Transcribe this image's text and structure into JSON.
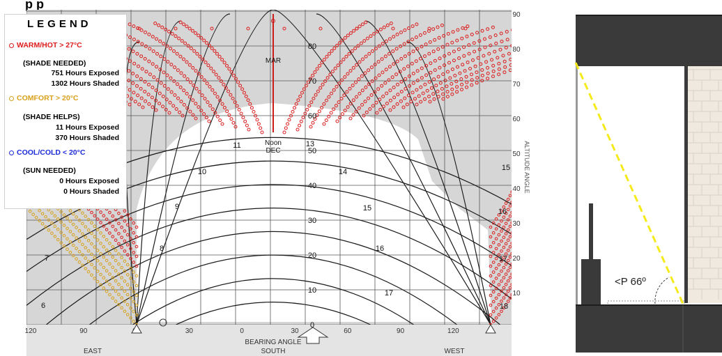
{
  "colors": {
    "hot": "#dd1c1c",
    "comfort": "#d8a21c",
    "cool": "#1c2bd8",
    "grid_bg": "#d6d6d6",
    "building": "#3a3a3a",
    "dashed_line": "#f4ea1c"
  },
  "legend": {
    "title": "LEGEND",
    "hot_label": "WARM/HOT > 27°C",
    "hot_note": "(SHADE NEEDED)",
    "hot_exposed": "751 Hours Exposed",
    "hot_shaded": "1302 Hours Shaded",
    "comfort_label": "COMFORT > 20°C",
    "comfort_note": "(SHADE HELPS)",
    "comfort_exposed": "11 Hours Exposed",
    "comfort_shaded": "370 Hours Shaded",
    "cool_label": "COOL/COLD < 20°C",
    "cool_note": "(SUN NEEDED)",
    "cool_exposed": "0 Hours Exposed",
    "cool_shaded": "0 Hours Shaded"
  },
  "top_cut_text": "p p",
  "chart": {
    "altitude_ticks": [
      "90",
      "80",
      "70",
      "60",
      "50",
      "40",
      "30",
      "20",
      "10"
    ],
    "altitude_axis_label": "ALTITUDE ANGLE",
    "bearing_ticks": [
      "120",
      "90",
      "60",
      "30",
      "0",
      "30",
      "60",
      "90",
      "120"
    ],
    "bearing_axis_label": "BEARING ANGLE",
    "direction_labels": [
      "EAST",
      "SOUTH",
      "WEST"
    ],
    "center_altitude_labels": [
      "80",
      "70",
      "60",
      "50",
      "40",
      "30",
      "20",
      "10",
      "0"
    ],
    "hour_labels_left": [
      "6",
      "7",
      "8",
      "9",
      "10",
      "11"
    ],
    "hour_labels_right": [
      "13",
      "14",
      "15",
      "16",
      "17"
    ],
    "right_edge_hours": [
      "15",
      "16",
      "17",
      "18"
    ],
    "noon_label": "Noon",
    "mar_label": "MAR",
    "dec_label": "DEC"
  },
  "section": {
    "angle_label": "<P 66º"
  }
}
